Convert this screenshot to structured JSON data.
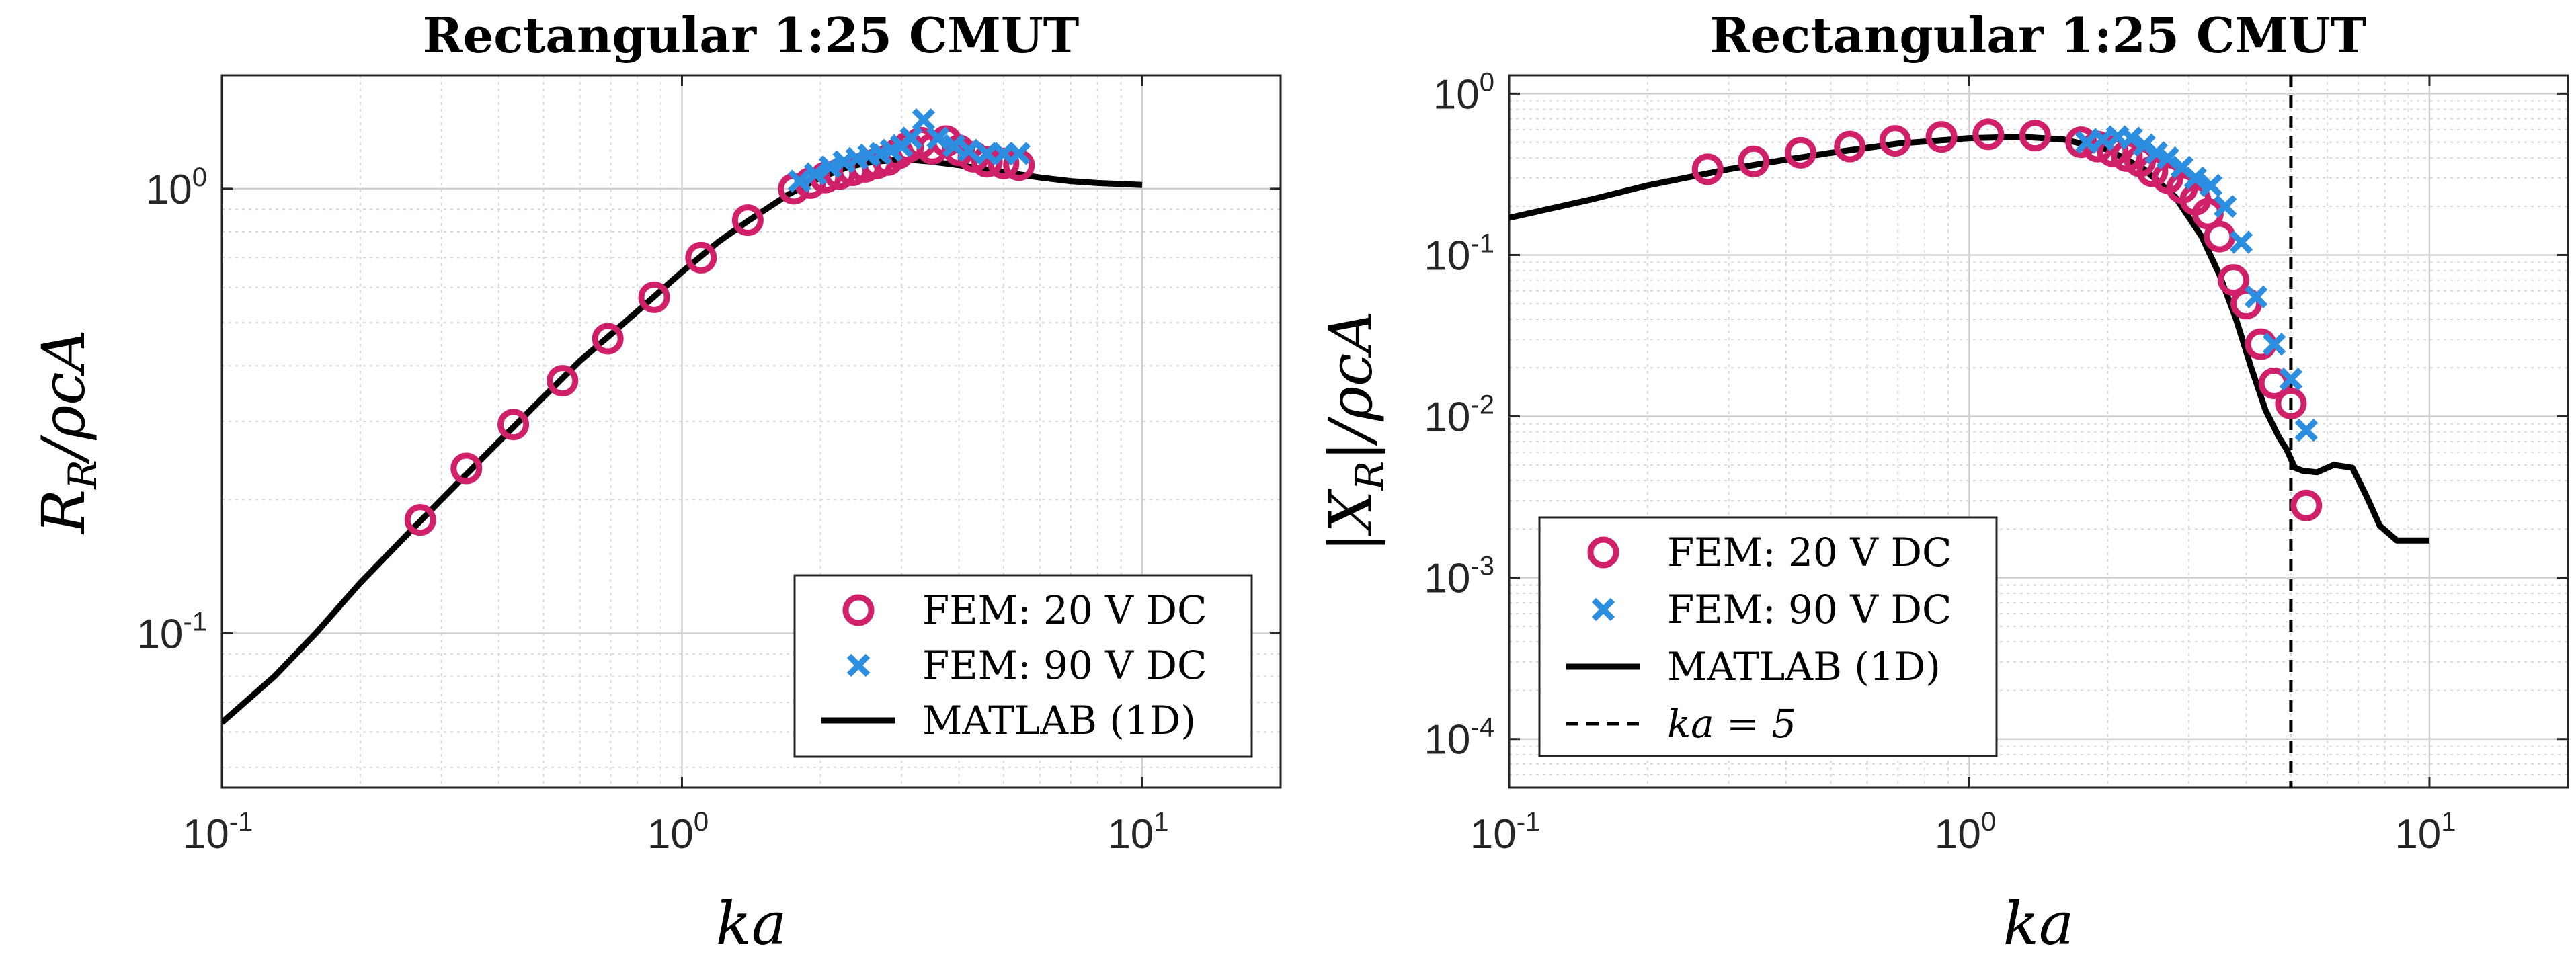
{
  "colors": {
    "fem20": "#d0206a",
    "fem90": "#2b8ee0",
    "matlab": "#000000",
    "vline": "#000000"
  },
  "chart_data": [
    {
      "type": "scatter",
      "title": "Rectangular 1:25 CMUT",
      "xlabel": "ka",
      "ylabel_main": "R",
      "ylabel_sub": "R",
      "ylabel_tail": "/ρcA",
      "xscale": "log",
      "yscale": "log",
      "xlim": [
        0.1,
        20
      ],
      "ylim": [
        0.045,
        1.8
      ],
      "grid": true,
      "x_ticks": [
        {
          "value": 0.1,
          "base": "10",
          "exp": "-1"
        },
        {
          "value": 1,
          "base": "10",
          "exp": "0"
        },
        {
          "value": 10,
          "base": "10",
          "exp": "1"
        }
      ],
      "y_ticks": [
        {
          "value": 0.1,
          "base": "10",
          "exp": "-1"
        },
        {
          "value": 1,
          "base": "10",
          "exp": "0"
        }
      ],
      "legend": {
        "position": "bottom-right",
        "entries": [
          {
            "key": "fem20",
            "marker": "circle",
            "label": "FEM: 20 V DC"
          },
          {
            "key": "fem90",
            "marker": "x",
            "label": "FEM: 90 V DC"
          },
          {
            "key": "matlab",
            "marker": "line",
            "label": "MATLAB (1D)"
          }
        ]
      },
      "series": [
        {
          "name": "FEM: 20 V DC",
          "key": "fem20",
          "marker": "circle",
          "x": [
            0.27,
            0.34,
            0.43,
            0.55,
            0.69,
            0.87,
            1.1,
            1.39,
            1.75,
            1.9,
            2.05,
            2.2,
            2.35,
            2.5,
            2.65,
            2.8,
            2.95,
            3.1,
            3.3,
            3.5,
            3.75,
            4.0,
            4.3,
            4.6,
            5.0,
            5.4
          ],
          "y": [
            0.18,
            0.235,
            0.295,
            0.37,
            0.46,
            0.57,
            0.7,
            0.85,
            1.0,
            1.03,
            1.06,
            1.08,
            1.1,
            1.12,
            1.14,
            1.16,
            1.2,
            1.24,
            1.27,
            1.23,
            1.28,
            1.22,
            1.18,
            1.15,
            1.14,
            1.13
          ]
        },
        {
          "name": "FEM: 90 V DC",
          "key": "fem90",
          "marker": "x",
          "x": [
            1.8,
            1.95,
            2.1,
            2.25,
            2.4,
            2.55,
            2.7,
            2.85,
            3.0,
            3.15,
            3.35,
            3.6,
            3.9,
            4.2,
            4.6,
            5.0,
            5.4
          ],
          "y": [
            1.04,
            1.08,
            1.12,
            1.15,
            1.17,
            1.19,
            1.2,
            1.22,
            1.25,
            1.3,
            1.43,
            1.3,
            1.25,
            1.22,
            1.2,
            1.2,
            1.2
          ]
        },
        {
          "name": "MATLAB (1D)",
          "key": "matlab",
          "marker": "line",
          "x": [
            0.1,
            0.13,
            0.16,
            0.2,
            0.25,
            0.3,
            0.4,
            0.5,
            0.6,
            0.7,
            0.8,
            1.0,
            1.2,
            1.4,
            1.7,
            2.0,
            2.3,
            2.6,
            2.9,
            3.2,
            3.5,
            4.0,
            5.0,
            6.0,
            7.0,
            8.0,
            10.0
          ],
          "y": [
            0.063,
            0.08,
            0.1,
            0.13,
            0.165,
            0.2,
            0.27,
            0.34,
            0.41,
            0.47,
            0.53,
            0.65,
            0.76,
            0.85,
            0.97,
            1.06,
            1.12,
            1.15,
            1.16,
            1.16,
            1.15,
            1.13,
            1.09,
            1.06,
            1.04,
            1.03,
            1.02
          ]
        }
      ]
    },
    {
      "type": "scatter",
      "title": "Rectangular 1:25 CMUT",
      "xlabel": "ka",
      "ylabel_main": "|X",
      "ylabel_sub": "R",
      "ylabel_tail": "|/ρcA",
      "xscale": "log",
      "yscale": "log",
      "xlim": [
        0.1,
        20
      ],
      "ylim": [
        5e-05,
        1.3
      ],
      "grid": true,
      "x_ticks": [
        {
          "value": 0.1,
          "base": "10",
          "exp": "-1"
        },
        {
          "value": 1,
          "base": "10",
          "exp": "0"
        },
        {
          "value": 10,
          "base": "10",
          "exp": "1"
        }
      ],
      "y_ticks": [
        {
          "value": 0.0001,
          "base": "10",
          "exp": "-4"
        },
        {
          "value": 0.001,
          "base": "10",
          "exp": "-3"
        },
        {
          "value": 0.01,
          "base": "10",
          "exp": "-2"
        },
        {
          "value": 0.1,
          "base": "10",
          "exp": "-1"
        },
        {
          "value": 1,
          "base": "10",
          "exp": "0"
        }
      ],
      "vline": {
        "x": 5,
        "label": "ka = 5"
      },
      "legend": {
        "position": "bottom-left",
        "entries": [
          {
            "key": "fem20",
            "marker": "circle",
            "label": "FEM: 20 V DC"
          },
          {
            "key": "fem90",
            "marker": "x",
            "label": "FEM: 90 V DC"
          },
          {
            "key": "matlab",
            "marker": "line",
            "label": "MATLAB (1D)"
          },
          {
            "key": "vline",
            "marker": "dash",
            "label": "ka = 5"
          }
        ]
      },
      "series": [
        {
          "name": "FEM: 20 V DC",
          "key": "fem20",
          "marker": "circle",
          "x": [
            0.27,
            0.34,
            0.43,
            0.55,
            0.69,
            0.87,
            1.1,
            1.39,
            1.75,
            1.9,
            2.05,
            2.2,
            2.35,
            2.5,
            2.7,
            2.9,
            3.1,
            3.3,
            3.5,
            3.75,
            4.0,
            4.3,
            4.6,
            5.0,
            5.4
          ],
          "y": [
            0.34,
            0.38,
            0.43,
            0.47,
            0.51,
            0.54,
            0.56,
            0.55,
            0.5,
            0.47,
            0.44,
            0.41,
            0.38,
            0.33,
            0.3,
            0.26,
            0.22,
            0.18,
            0.13,
            0.07,
            0.05,
            0.028,
            0.016,
            0.012,
            0.0028
          ]
        },
        {
          "name": "FEM: 90 V DC",
          "key": "fem90",
          "marker": "x",
          "x": [
            1.8,
            1.95,
            2.1,
            2.25,
            2.4,
            2.55,
            2.7,
            2.9,
            3.1,
            3.35,
            3.6,
            3.9,
            4.2,
            4.6,
            5.0,
            5.4
          ],
          "y": [
            0.5,
            0.52,
            0.54,
            0.53,
            0.48,
            0.43,
            0.4,
            0.35,
            0.3,
            0.27,
            0.2,
            0.12,
            0.055,
            0.028,
            0.017,
            0.0082
          ]
        },
        {
          "name": "MATLAB (1D)",
          "key": "matlab",
          "marker": "line",
          "x": [
            0.1,
            0.15,
            0.2,
            0.3,
            0.4,
            0.5,
            0.7,
            1.0,
            1.3,
            1.6,
            2.0,
            2.4,
            2.8,
            3.2,
            3.5,
            3.8,
            4.1,
            4.4,
            4.7,
            4.9,
            5.1,
            5.3,
            5.7,
            6.2,
            6.8,
            7.3,
            7.8,
            8.5,
            9.2,
            10.0
          ],
          "y": [
            0.17,
            0.22,
            0.27,
            0.34,
            0.39,
            0.43,
            0.49,
            0.53,
            0.54,
            0.52,
            0.45,
            0.34,
            0.23,
            0.13,
            0.075,
            0.04,
            0.02,
            0.011,
            0.0075,
            0.0062,
            0.0048,
            0.0046,
            0.0045,
            0.005,
            0.0048,
            0.0032,
            0.0021,
            0.0017,
            0.0017,
            0.0017
          ]
        }
      ]
    }
  ]
}
